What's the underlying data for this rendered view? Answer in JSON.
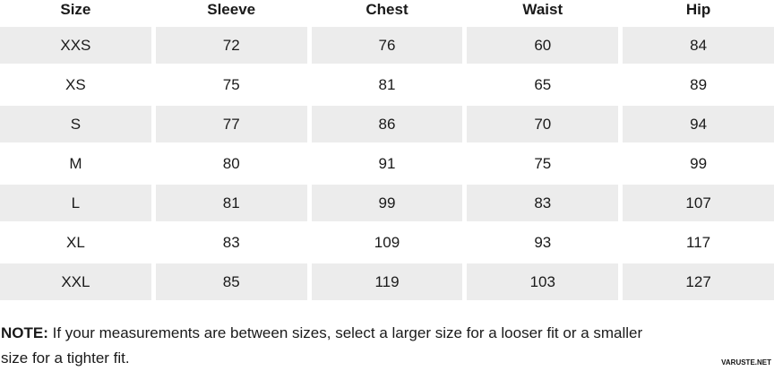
{
  "table": {
    "headers": [
      "Size",
      "Sleeve",
      "Chest",
      "Waist",
      "Hip"
    ],
    "rows": [
      [
        "XXS",
        "72",
        "76",
        "60",
        "84"
      ],
      [
        "XS",
        "75",
        "81",
        "65",
        "89"
      ],
      [
        "S",
        "77",
        "86",
        "70",
        "94"
      ],
      [
        "M",
        "80",
        "91",
        "75",
        "99"
      ],
      [
        "L",
        "81",
        "99",
        "83",
        "107"
      ],
      [
        "XL",
        "83",
        "109",
        "93",
        "117"
      ],
      [
        "XXL",
        "85",
        "119",
        "103",
        "127"
      ]
    ]
  },
  "note": {
    "label": "NOTE:",
    "text": " If your measurements are between sizes, select a larger size for a looser fit or a smaller size for a tighter fit."
  },
  "watermark": "VARUSTE.NET",
  "colors": {
    "row_alt_background": "#ececec",
    "text": "#1a1a1a"
  }
}
